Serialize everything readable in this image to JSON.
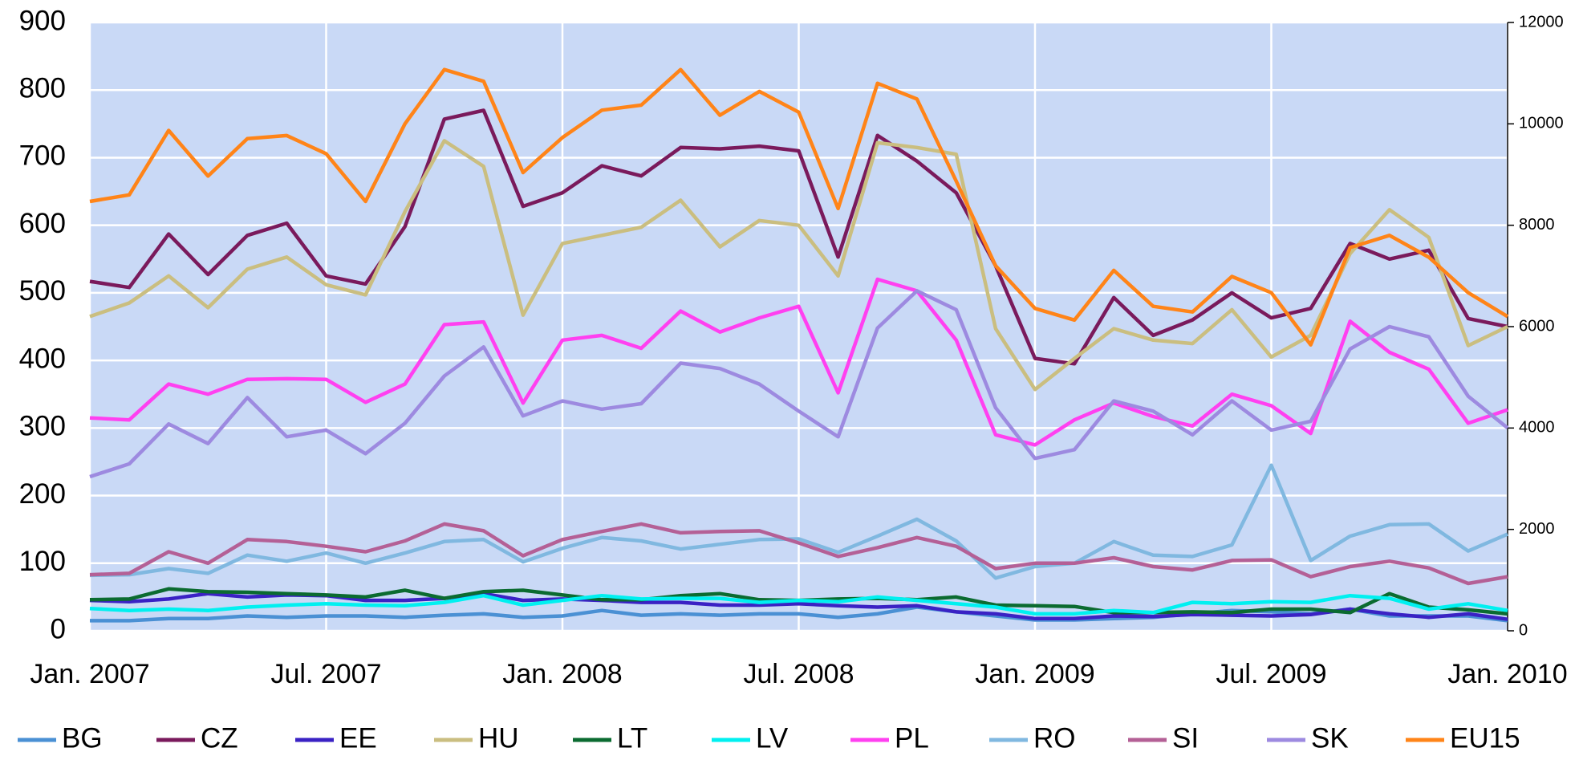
{
  "chart_data": {
    "type": "line",
    "categories": [
      "Jan. 2007",
      null,
      null,
      null,
      null,
      null,
      "Jul. 2007",
      null,
      null,
      null,
      null,
      null,
      "Jan. 2008",
      null,
      null,
      null,
      null,
      null,
      "Jul. 2008",
      null,
      null,
      null,
      null,
      null,
      "Jan. 2009",
      null,
      null,
      null,
      null,
      null,
      "Jul. 2009",
      null,
      null,
      null,
      null,
      null,
      "Jan. 2010"
    ],
    "ylim": [
      0,
      900
    ],
    "yticks": [
      0,
      100,
      200,
      300,
      400,
      500,
      600,
      700,
      800,
      900
    ],
    "y2lim": [
      0,
      12000
    ],
    "y2ticks": [
      0,
      2000,
      4000,
      6000,
      8000,
      10000,
      12000
    ],
    "grid": true,
    "legend": "bottom",
    "series": [
      {
        "name": "BG",
        "color": "#4a90d4",
        "values": [
          15,
          15,
          18,
          18,
          22,
          20,
          22,
          22,
          20,
          23,
          25,
          20,
          22,
          30,
          23,
          25,
          23,
          25,
          25,
          20,
          25,
          35,
          28,
          22,
          16,
          16,
          18,
          20,
          25,
          30,
          28,
          25,
          32,
          22,
          22,
          22,
          15
        ]
      },
      {
        "name": "CZ",
        "color": "#7a1a5c",
        "values": [
          517,
          508,
          587,
          527,
          585,
          603,
          525,
          513,
          598,
          757,
          770,
          628,
          648,
          688,
          673,
          715,
          713,
          717,
          710,
          553,
          733,
          695,
          648,
          540,
          403,
          395,
          493,
          437,
          460,
          500,
          463,
          477,
          573,
          550,
          563,
          462,
          450
        ]
      },
      {
        "name": "EE",
        "color": "#3a22c4",
        "values": [
          45,
          43,
          47,
          55,
          50,
          53,
          52,
          45,
          45,
          48,
          55,
          45,
          47,
          45,
          42,
          42,
          38,
          38,
          40,
          37,
          35,
          37,
          28,
          25,
          18,
          18,
          22,
          21,
          24,
          23,
          22,
          24,
          32,
          25,
          20,
          25,
          17
        ]
      },
      {
        "name": "HU",
        "color": "#cabe80",
        "values": [
          465,
          485,
          525,
          478,
          535,
          553,
          512,
          497,
          620,
          725,
          687,
          467,
          573,
          585,
          597,
          637,
          568,
          607,
          600,
          525,
          722,
          715,
          705,
          447,
          357,
          403,
          447,
          430,
          425,
          475,
          405,
          437,
          558,
          623,
          582,
          422,
          450
        ]
      },
      {
        "name": "LT",
        "color": "#0b6b30",
        "values": [
          46,
          47,
          62,
          58,
          57,
          55,
          53,
          50,
          60,
          48,
          58,
          60,
          53,
          46,
          46,
          52,
          55,
          46,
          45,
          47,
          48,
          46,
          50,
          38,
          37,
          36,
          27,
          27,
          28,
          27,
          32,
          32,
          27,
          55,
          35,
          31,
          25
        ]
      },
      {
        "name": "LV",
        "color": "#00f0f0",
        "values": [
          33,
          30,
          32,
          30,
          35,
          38,
          40,
          38,
          37,
          42,
          52,
          38,
          45,
          52,
          47,
          48,
          48,
          42,
          45,
          43,
          50,
          45,
          40,
          35,
          25,
          25,
          30,
          27,
          42,
          40,
          43,
          42,
          52,
          48,
          32,
          40,
          30
        ]
      },
      {
        "name": "PL",
        "color": "#ff40f0",
        "values": [
          315,
          312,
          365,
          350,
          372,
          373,
          372,
          338,
          365,
          453,
          457,
          337,
          430,
          437,
          418,
          473,
          442,
          463,
          480,
          352,
          520,
          503,
          430,
          290,
          275,
          312,
          337,
          317,
          303,
          350,
          333,
          292,
          458,
          412,
          387,
          307,
          327
        ]
      },
      {
        "name": "RO",
        "color": "#80b8e0",
        "values": [
          82,
          83,
          92,
          85,
          112,
          103,
          115,
          100,
          115,
          132,
          135,
          102,
          122,
          138,
          133,
          121,
          128,
          135,
          136,
          116,
          140,
          165,
          133,
          78,
          95,
          100,
          132,
          112,
          110,
          127,
          245,
          104,
          140,
          157,
          158,
          118,
          143
        ]
      },
      {
        "name": "SI",
        "color": "#b46096",
        "values": [
          83,
          85,
          117,
          100,
          135,
          132,
          125,
          117,
          133,
          158,
          148,
          111,
          135,
          147,
          158,
          145,
          147,
          148,
          130,
          110,
          123,
          138,
          125,
          92,
          100,
          100,
          108,
          95,
          90,
          104,
          105,
          80,
          95,
          103,
          93,
          70,
          80
        ]
      },
      {
        "name": "SK",
        "color": "#9d8ae0",
        "values": [
          228,
          247,
          306,
          277,
          345,
          287,
          297,
          262,
          307,
          377,
          420,
          318,
          340,
          328,
          336,
          396,
          388,
          365,
          325,
          287,
          448,
          503,
          475,
          330,
          255,
          268,
          340,
          325,
          290,
          340,
          297,
          310,
          417,
          450,
          435,
          347,
          300
        ]
      },
      {
        "name": "EU15",
        "color": "#ff8418",
        "axis": "y2",
        "values": [
          8470,
          8600,
          9870,
          8970,
          9710,
          9770,
          9410,
          8470,
          10000,
          11070,
          10840,
          9040,
          9730,
          10270,
          10370,
          11070,
          10170,
          10640,
          10230,
          8330,
          10800,
          10490,
          8870,
          7200,
          6360,
          6130,
          7110,
          6400,
          6290,
          6990,
          6670,
          5640,
          7560,
          7800,
          7370,
          6670,
          6200
        ]
      }
    ]
  }
}
